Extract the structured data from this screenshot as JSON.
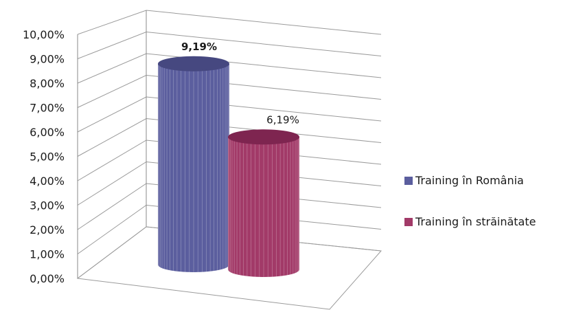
{
  "chart_data": {
    "type": "bar",
    "style": "3d-cylinder",
    "categories": [
      "Training în România",
      "Training în străinătate"
    ],
    "series": [
      {
        "name": "Training în România",
        "value": 9.19,
        "label": "9,19%",
        "label_bold": true,
        "color": "#5b5e9e",
        "color_top": "#464880"
      },
      {
        "name": "Training în străinătate",
        "value": 6.19,
        "label": "6,19%",
        "label_bold": false,
        "color": "#a23a68",
        "color_top": "#7e2550"
      }
    ],
    "yticks": [
      "0,00%",
      "1,00%",
      "2,00%",
      "3,00%",
      "4,00%",
      "5,00%",
      "6,00%",
      "7,00%",
      "8,00%",
      "9,00%",
      "10,00%"
    ],
    "ylim": [
      0,
      10
    ],
    "grid": true,
    "legend_position": "right",
    "title": "",
    "xlabel": "",
    "ylabel": ""
  }
}
